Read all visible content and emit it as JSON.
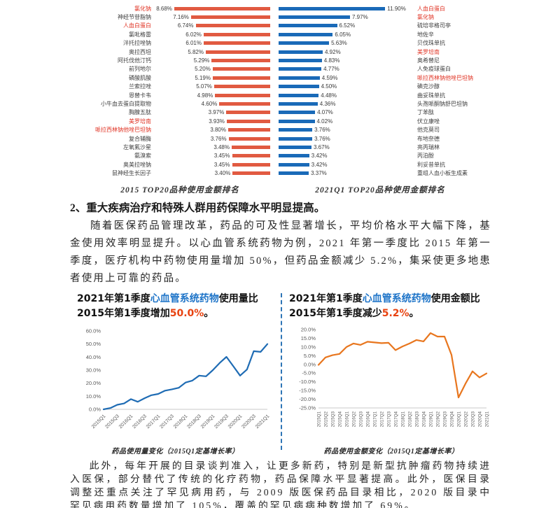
{
  "text": {
    "section_heading": "2、重大疾病治疗和特殊人群用药保障水平明显提高。",
    "paragraph_1": "随着医保药品管理改革，药品的可及性显著增长，平均价格水平大幅下降，基金使用效率明显提升。以心血管系统药物为例，2021 年第一季度比 2015 年第一季度，医疗机构中药物使用量增加 50%，但药品金额减少 5.2%，集采使更多地患者使用上可靠的药品。",
    "paragraph_2": "此外，每年开展的目录谈判准入，让更多新药，特别是新型抗肿瘤药物持续进入医保，部分替代了传统的化疗药物，药品保障水平显著提高。此外，医保目录调整还重点关注了罕见病用药，与 2009 版医保药品目录相比，2020 版目录中罕见病用药数量增加了 105%，覆盖的罕见病病种数增加了 69%。"
  },
  "panels": {
    "left_title": {
      "pre": "2021年第1季度",
      "drug": "心血管系统药物",
      "mid": "使用量比2015年第1季度增加",
      "pct": "50.0%",
      "post": "。"
    },
    "right_title": {
      "pre": "2021年第1季度",
      "drug": "心血管系统药物",
      "mid": "使用金额比2015年第1季度减少",
      "pct": "5.2%",
      "post": "。"
    }
  },
  "colors": {
    "bar_red": "#E15A41",
    "bar_blue": "#1A6AB8",
    "name_red": "#E03425",
    "line_blue": "#1F6CB4",
    "line_orange": "#E8761E",
    "title_drug_blue": "#1E74C8",
    "title_pct_red": "#E8420F",
    "divider_blue": "#2E75B6",
    "axis_text": "#595959",
    "axis_line": "#c8c8c8"
  },
  "chart_data": [
    {
      "id": "bar-2015",
      "type": "bar",
      "title": "2015 TOP20品种使用金额排名",
      "direction": "bars-grow-leftward-right-aligned",
      "color": "#E15A41",
      "value_suffix": "%",
      "categories": [
        "氯化钠",
        "神经节苷脂钠",
        "人血白蛋白",
        "氯吡格雷",
        "泮托拉唑钠",
        "奥拉西坦",
        "阿托伐他汀钙",
        "前列地尔",
        "磷酸肌酸",
        "兰索拉唑",
        "恩替卡韦",
        "小牛血去蛋白提取物",
        "胸腺五肽",
        "美罗培南",
        "哌拉西林钠他唑巴坦钠",
        "复合辅酶",
        "左氧氟沙星",
        "氨溴索",
        "奥美拉唑钠",
        "鼠神经生长因子"
      ],
      "values": [
        8.68,
        7.16,
        6.74,
        6.02,
        6.01,
        5.82,
        5.29,
        5.2,
        5.19,
        5.07,
        4.98,
        4.6,
        3.97,
        3.93,
        3.8,
        3.76,
        3.48,
        3.45,
        3.45,
        3.4
      ],
      "red_highlight_indices": [
        0,
        2,
        13,
        14
      ]
    },
    {
      "id": "bar-2021q1",
      "type": "bar",
      "title": "2021Q1 TOP20品种使用金额排名",
      "direction": "bars-grow-rightward-left-aligned",
      "color": "#1A6AB8",
      "value_suffix": "%",
      "categories": [
        "人血白蛋白",
        "氯化钠",
        "硫培非格司亭",
        "地佐辛",
        "贝伐珠单抗",
        "美罗培南",
        "奥希替尼",
        "人免疫球蛋白",
        "哌拉西林钠他唑巴坦钠",
        "碘克沙醇",
        "曲妥珠单抗",
        "头孢哌酮钠舒巴坦钠",
        "丁苯酞",
        "伏立康唑",
        "他克莫司",
        "布地奈德",
        "亮丙瑞林",
        "丙泊酚",
        "利妥昔单抗",
        "重组人血小板生成素"
      ],
      "values": [
        11.9,
        7.97,
        6.52,
        6.05,
        5.63,
        4.92,
        4.83,
        4.77,
        4.59,
        4.5,
        4.48,
        4.36,
        4.07,
        4.02,
        3.76,
        3.76,
        3.67,
        3.42,
        3.42,
        3.37
      ],
      "red_highlight_indices": [
        0,
        1,
        5,
        8
      ]
    },
    {
      "id": "line-usage-volume",
      "type": "line",
      "caption": "药品使用量变化（2015Q1定基增长率）",
      "color": "#1F6CB4",
      "x": [
        "2015Q1",
        "2015Q2",
        "2015Q3",
        "2015Q4",
        "2016Q1",
        "2016Q2",
        "2016Q3",
        "2016Q4",
        "2017Q1",
        "2017Q2",
        "2017Q3",
        "2017Q4",
        "2018Q1",
        "2018Q2",
        "2018Q3",
        "2018Q4",
        "2019Q1",
        "2019Q2",
        "2019Q3",
        "2019Q4",
        "2020Q1",
        "2020Q2",
        "2020Q3",
        "2020Q4",
        "2021Q1"
      ],
      "values": [
        0.0,
        1.0,
        3.5,
        4.5,
        7.8,
        5.8,
        8.5,
        10.8,
        11.8,
        14.3,
        15.3,
        16.5,
        20.5,
        22.0,
        25.8,
        25.3,
        30.0,
        35.5,
        40.2,
        33.0,
        25.8,
        30.5,
        44.5,
        44.0,
        50.0
      ],
      "ylim": [
        0,
        60
      ],
      "ytick_step": 10,
      "xtick_every": 2,
      "grid": false,
      "legend": "none"
    },
    {
      "id": "line-usage-amount",
      "type": "line",
      "caption": "药品使用金额变化（2015Q1定基增长率）",
      "color": "#E8761E",
      "x": [
        "2015Q1",
        "2015Q2",
        "2015Q3",
        "2015Q4",
        "2016Q1",
        "2016Q2",
        "2016Q3",
        "2016Q4",
        "2017Q1",
        "2017Q2",
        "2017Q3",
        "2017Q4",
        "2018Q1",
        "2018Q2",
        "2018Q3",
        "2018Q4",
        "2019Q1",
        "2019Q2",
        "2019Q3",
        "2019Q4",
        "2020Q1",
        "2020Q2",
        "2020Q3",
        "2020Q4",
        "2021Q1"
      ],
      "values": [
        -0.3,
        4.0,
        5.3,
        6.0,
        10.0,
        12.0,
        11.2,
        13.0,
        12.6,
        12.2,
        12.4,
        8.2,
        10.3,
        12.0,
        14.0,
        13.2,
        18.0,
        16.0,
        16.0,
        5.5,
        -19.0,
        -11.0,
        -4.0,
        -7.5,
        -5.2
      ],
      "ylim": [
        -25,
        20
      ],
      "ytick_step": 5,
      "xtick_every": 1,
      "grid": false,
      "legend": "none"
    }
  ]
}
